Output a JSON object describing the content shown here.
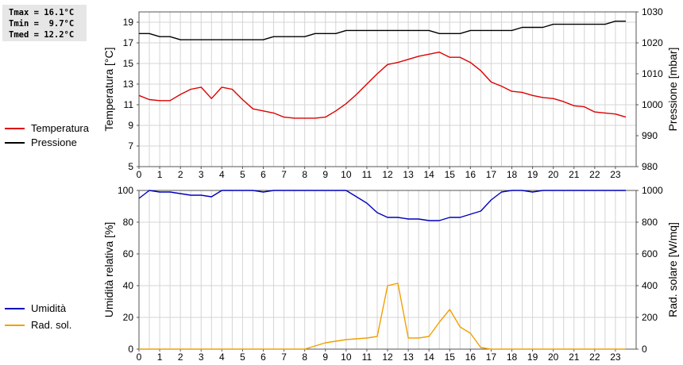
{
  "stats": {
    "tmax": "Tmax = 16.1°C",
    "tmin": "Tmin =  9.7°C",
    "tmed": "Tmed = 12.2°C"
  },
  "legend": {
    "temperatura": "Temperatura",
    "pressione": "Pressione",
    "umidita": "Umidità",
    "rad_sol": "Rad. sol."
  },
  "colors": {
    "temperatura": "#dd0000",
    "pressione": "#000000",
    "umidita": "#0000bb",
    "rad_sol": "#f0a000",
    "grid": "#d4d4d4"
  },
  "chart_data": [
    {
      "type": "line",
      "x_ticks": [
        "0",
        "1",
        "2",
        "3",
        "4",
        "5",
        "6",
        "7",
        "8",
        "9",
        "10",
        "11",
        "12",
        "13",
        "14",
        "15",
        "16",
        "17",
        "18",
        "19",
        "20",
        "21",
        "22",
        "23"
      ],
      "xlim": [
        0,
        24
      ],
      "grid": true,
      "ylabel": "Temperatura [°C]",
      "ylim": [
        5,
        20
      ],
      "y_ticks": [
        "5",
        "7",
        "9",
        "11",
        "13",
        "15",
        "17",
        "19"
      ],
      "y2label": "Pressione [mbar]",
      "y2lim": [
        980,
        1030
      ],
      "y2_ticks": [
        "980",
        "990",
        "1000",
        "1010",
        "1020",
        "1030"
      ],
      "series": [
        {
          "name": "Temperatura",
          "axis": "left",
          "x": [
            0,
            0.5,
            1,
            1.5,
            2,
            2.5,
            3,
            3.5,
            4,
            4.5,
            5,
            5.5,
            6,
            6.5,
            7,
            7.5,
            8,
            8.5,
            9,
            9.5,
            10,
            10.5,
            11,
            11.5,
            12,
            12.5,
            13,
            13.5,
            14,
            14.5,
            15,
            15.5,
            16,
            16.5,
            17,
            17.5,
            18,
            18.5,
            19,
            19.5,
            20,
            20.5,
            21,
            21.5,
            22,
            22.5,
            23,
            23.5
          ],
          "y": [
            11.9,
            11.5,
            11.4,
            11.4,
            12.0,
            12.5,
            12.7,
            11.6,
            12.7,
            12.5,
            11.5,
            10.6,
            10.4,
            10.2,
            9.8,
            9.7,
            9.7,
            9.7,
            9.8,
            10.4,
            11.1,
            12.0,
            13.0,
            14.0,
            14.9,
            15.1,
            15.4,
            15.7,
            15.9,
            16.1,
            15.6,
            15.6,
            15.1,
            14.3,
            13.2,
            12.8,
            12.3,
            12.2,
            11.9,
            11.7,
            11.6,
            11.3,
            10.9,
            10.8,
            10.3,
            10.2,
            10.1,
            9.8
          ]
        },
        {
          "name": "Pressione",
          "axis": "right",
          "x": [
            0,
            0.5,
            1,
            1.5,
            2,
            2.5,
            3,
            3.5,
            4,
            4.5,
            5,
            5.5,
            6,
            6.5,
            7,
            7.5,
            8,
            8.5,
            9,
            9.5,
            10,
            10.5,
            11,
            11.5,
            12,
            12.5,
            13,
            13.5,
            14,
            14.5,
            15,
            15.5,
            16,
            16.5,
            17,
            17.5,
            18,
            18.5,
            19,
            19.5,
            20,
            20.5,
            21,
            21.5,
            22,
            22.5,
            23,
            23.5
          ],
          "y": [
            1023,
            1023,
            1022,
            1022,
            1021,
            1021,
            1021,
            1021,
            1021,
            1021,
            1021,
            1021,
            1021,
            1022,
            1022,
            1022,
            1022,
            1023,
            1023,
            1023,
            1024,
            1024,
            1024,
            1024,
            1024,
            1024,
            1024,
            1024,
            1024,
            1023,
            1023,
            1023,
            1024,
            1024,
            1024,
            1024,
            1024,
            1025,
            1025,
            1025,
            1026,
            1026,
            1026,
            1026,
            1026,
            1026,
            1027,
            1027
          ]
        }
      ]
    },
    {
      "type": "line",
      "x_ticks": [
        "0",
        "1",
        "2",
        "3",
        "4",
        "5",
        "6",
        "7",
        "8",
        "9",
        "10",
        "11",
        "12",
        "13",
        "14",
        "15",
        "16",
        "17",
        "18",
        "19",
        "20",
        "21",
        "22",
        "23"
      ],
      "xlim": [
        0,
        24
      ],
      "grid": true,
      "ylabel": "Umidità relativa [%]",
      "ylim": [
        0,
        100
      ],
      "y_ticks": [
        "0",
        "20",
        "40",
        "60",
        "80",
        "100"
      ],
      "y2label": "Rad. solare [W/mq]",
      "y2lim": [
        0,
        1000
      ],
      "y2_ticks": [
        "0",
        "200",
        "400",
        "600",
        "800",
        "1000"
      ],
      "series": [
        {
          "name": "Umidità",
          "axis": "left",
          "x": [
            0,
            0.5,
            1,
            1.5,
            2,
            2.5,
            3,
            3.5,
            4,
            4.5,
            5,
            5.5,
            6,
            6.5,
            7,
            7.5,
            8,
            8.5,
            9,
            9.5,
            10,
            10.5,
            11,
            11.5,
            12,
            12.5,
            13,
            13.5,
            14,
            14.5,
            15,
            15.5,
            16,
            16.5,
            17,
            17.5,
            18,
            18.5,
            19,
            19.5,
            20,
            20.5,
            21,
            21.5,
            22,
            22.5,
            23,
            23.5
          ],
          "y": [
            95,
            100,
            99,
            99,
            98,
            97,
            97,
            96,
            100,
            100,
            100,
            100,
            99,
            100,
            100,
            100,
            100,
            100,
            100,
            100,
            100,
            96,
            92,
            86,
            83,
            83,
            82,
            82,
            81,
            81,
            83,
            83,
            85,
            87,
            94,
            99,
            100,
            100,
            99,
            100,
            100,
            100,
            100,
            100,
            100,
            100,
            100,
            100
          ]
        },
        {
          "name": "Rad. sol.",
          "axis": "right",
          "x": [
            0,
            0.5,
            1,
            1.5,
            2,
            2.5,
            3,
            3.5,
            4,
            4.5,
            5,
            5.5,
            6,
            6.5,
            7,
            7.5,
            8,
            8.5,
            9,
            9.5,
            10,
            10.5,
            11,
            11.5,
            12,
            12.5,
            13,
            13.5,
            14,
            14.5,
            15,
            15.5,
            16,
            16.5,
            17,
            17.5,
            18,
            18.5,
            19,
            19.5,
            20,
            20.5,
            21,
            21.5,
            22,
            22.5,
            23,
            23.5
          ],
          "y": [
            0,
            0,
            0,
            0,
            0,
            0,
            0,
            0,
            0,
            0,
            0,
            0,
            0,
            0,
            0,
            0,
            0,
            20,
            40,
            50,
            60,
            65,
            70,
            80,
            400,
            415,
            70,
            70,
            80,
            170,
            250,
            140,
            100,
            10,
            0,
            0,
            0,
            0,
            0,
            0,
            0,
            0,
            0,
            0,
            0,
            0,
            0,
            0
          ]
        }
      ]
    }
  ]
}
